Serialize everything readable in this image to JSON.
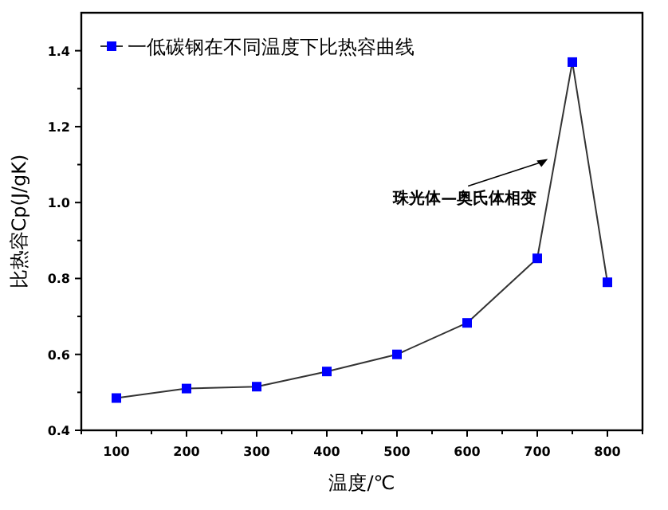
{
  "chart_data": {
    "type": "line",
    "xlabel": "温度/℃",
    "ylabel": "比热容Cp(J/gK)",
    "x": [
      100,
      200,
      300,
      400,
      500,
      600,
      700,
      750,
      800
    ],
    "series": [
      {
        "name": "一低碳钢在不同温度下比热容曲线",
        "color": "#0000ff",
        "values": [
          0.485,
          0.51,
          0.515,
          0.555,
          0.6,
          0.683,
          0.853,
          1.37,
          0.79
        ]
      }
    ],
    "xlim": [
      50,
      850
    ],
    "xticks": [
      100,
      200,
      300,
      400,
      500,
      600,
      700,
      800
    ],
    "ylim": [
      0.4,
      1.5
    ],
    "yticks": [
      0.4,
      0.6,
      0.8,
      {
        "value": 1.0,
        "label": "1.0"
      },
      1.2,
      1.4
    ],
    "annotations": [
      {
        "text": "珠光体—奥氏体相变",
        "x": 715,
        "y": 1.115
      }
    ],
    "marker": "square",
    "line_style": "solid",
    "grid": false,
    "legend": "top left"
  }
}
